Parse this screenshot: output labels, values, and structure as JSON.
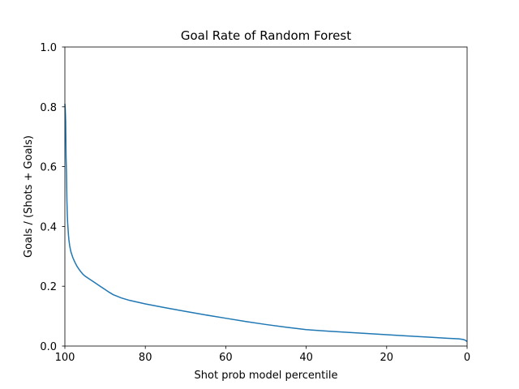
{
  "chart_data": {
    "type": "line",
    "title": "Goal Rate of Random Forest",
    "xlabel": "Shot prob model percentile",
    "ylabel": "Goals / (Shots + Goals)",
    "xlim": [
      100,
      0
    ],
    "ylim": [
      0.0,
      1.0
    ],
    "x_inverted": true,
    "grid": false,
    "xticks": [
      100,
      80,
      60,
      40,
      20,
      0
    ],
    "xtick_labels": [
      "100",
      "80",
      "60",
      "40",
      "20",
      "0"
    ],
    "yticks": [
      0.0,
      0.2,
      0.4,
      0.6,
      0.8,
      1.0
    ],
    "ytick_labels": [
      "0.0",
      "0.2",
      "0.4",
      "0.6",
      "0.8",
      "1.0"
    ],
    "series": [
      {
        "color": "#1f77b4",
        "x": [
          100,
          99.9,
          99.8,
          99.7,
          99.6,
          99.5,
          99.4,
          99.3,
          99.2,
          99.1,
          99.0,
          98.8,
          98.5,
          98.0,
          97.5,
          97.0,
          96.5,
          96.0,
          95.5,
          95.0,
          94.0,
          93.0,
          92.0,
          91.0,
          90.0,
          89.0,
          88.0,
          86.0,
          84.0,
          82.0,
          80.0,
          75.0,
          70.0,
          65.0,
          60.0,
          55.0,
          50.0,
          45.0,
          40.0,
          35.0,
          30.0,
          25.0,
          20.0,
          15.0,
          10.0,
          5.0,
          2.0,
          1.0,
          0.5,
          0.0
        ],
        "y": [
          0.81,
          0.79,
          0.75,
          0.63,
          0.58,
          0.49,
          0.44,
          0.41,
          0.39,
          0.37,
          0.355,
          0.335,
          0.315,
          0.295,
          0.28,
          0.267,
          0.257,
          0.248,
          0.24,
          0.234,
          0.225,
          0.216,
          0.207,
          0.198,
          0.189,
          0.18,
          0.172,
          0.161,
          0.153,
          0.147,
          0.141,
          0.128,
          0.116,
          0.104,
          0.093,
          0.082,
          0.072,
          0.063,
          0.055,
          0.05,
          0.046,
          0.042,
          0.038,
          0.034,
          0.03,
          0.026,
          0.024,
          0.022,
          0.02,
          0.015
        ]
      }
    ]
  }
}
